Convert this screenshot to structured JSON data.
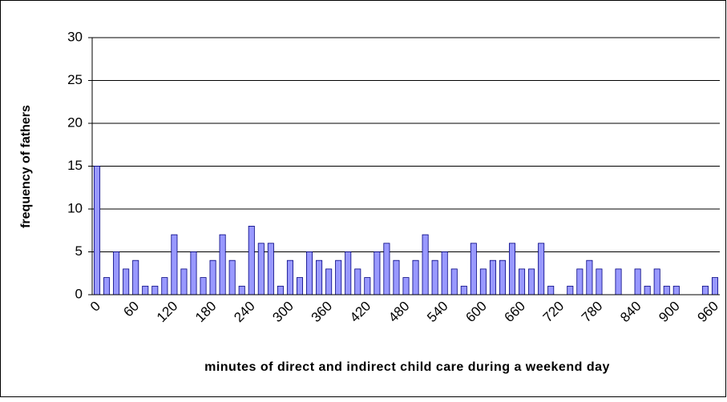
{
  "chart_data": {
    "type": "bar",
    "x_label": "minutes of direct and indirect child care during a weekend day",
    "y_label": "frequency of fathers",
    "categories": [
      "0",
      null,
      null,
      null,
      "60",
      null,
      null,
      null,
      "120",
      null,
      null,
      null,
      "180",
      null,
      null,
      null,
      "240",
      null,
      null,
      null,
      "300",
      null,
      null,
      null,
      "360",
      null,
      null,
      null,
      "420",
      null,
      null,
      null,
      "480",
      null,
      null,
      null,
      "540",
      null,
      null,
      null,
      "600",
      null,
      null,
      null,
      "660",
      null,
      null,
      null,
      "720",
      null,
      null,
      null,
      "780",
      null,
      null,
      null,
      "840",
      null,
      null,
      null,
      "900",
      null,
      null,
      null,
      "960"
    ],
    "values": [
      15,
      2,
      5,
      3,
      4,
      1,
      1,
      2,
      7,
      3,
      5,
      2,
      4,
      7,
      4,
      1,
      8,
      6,
      6,
      1,
      4,
      2,
      5,
      4,
      3,
      4,
      5,
      3,
      2,
      5,
      6,
      4,
      2,
      4,
      7,
      4,
      5,
      3,
      1,
      6,
      3,
      4,
      4,
      6,
      3,
      3,
      6,
      1,
      0,
      1,
      3,
      4,
      3,
      0,
      3,
      0,
      3,
      1,
      3,
      1,
      1,
      0,
      0,
      1,
      2
    ],
    "color": "#9999ff",
    "ylim": [
      0,
      30
    ],
    "yticks": [
      0,
      5,
      10,
      15,
      20,
      25,
      30
    ],
    "grid": true
  }
}
